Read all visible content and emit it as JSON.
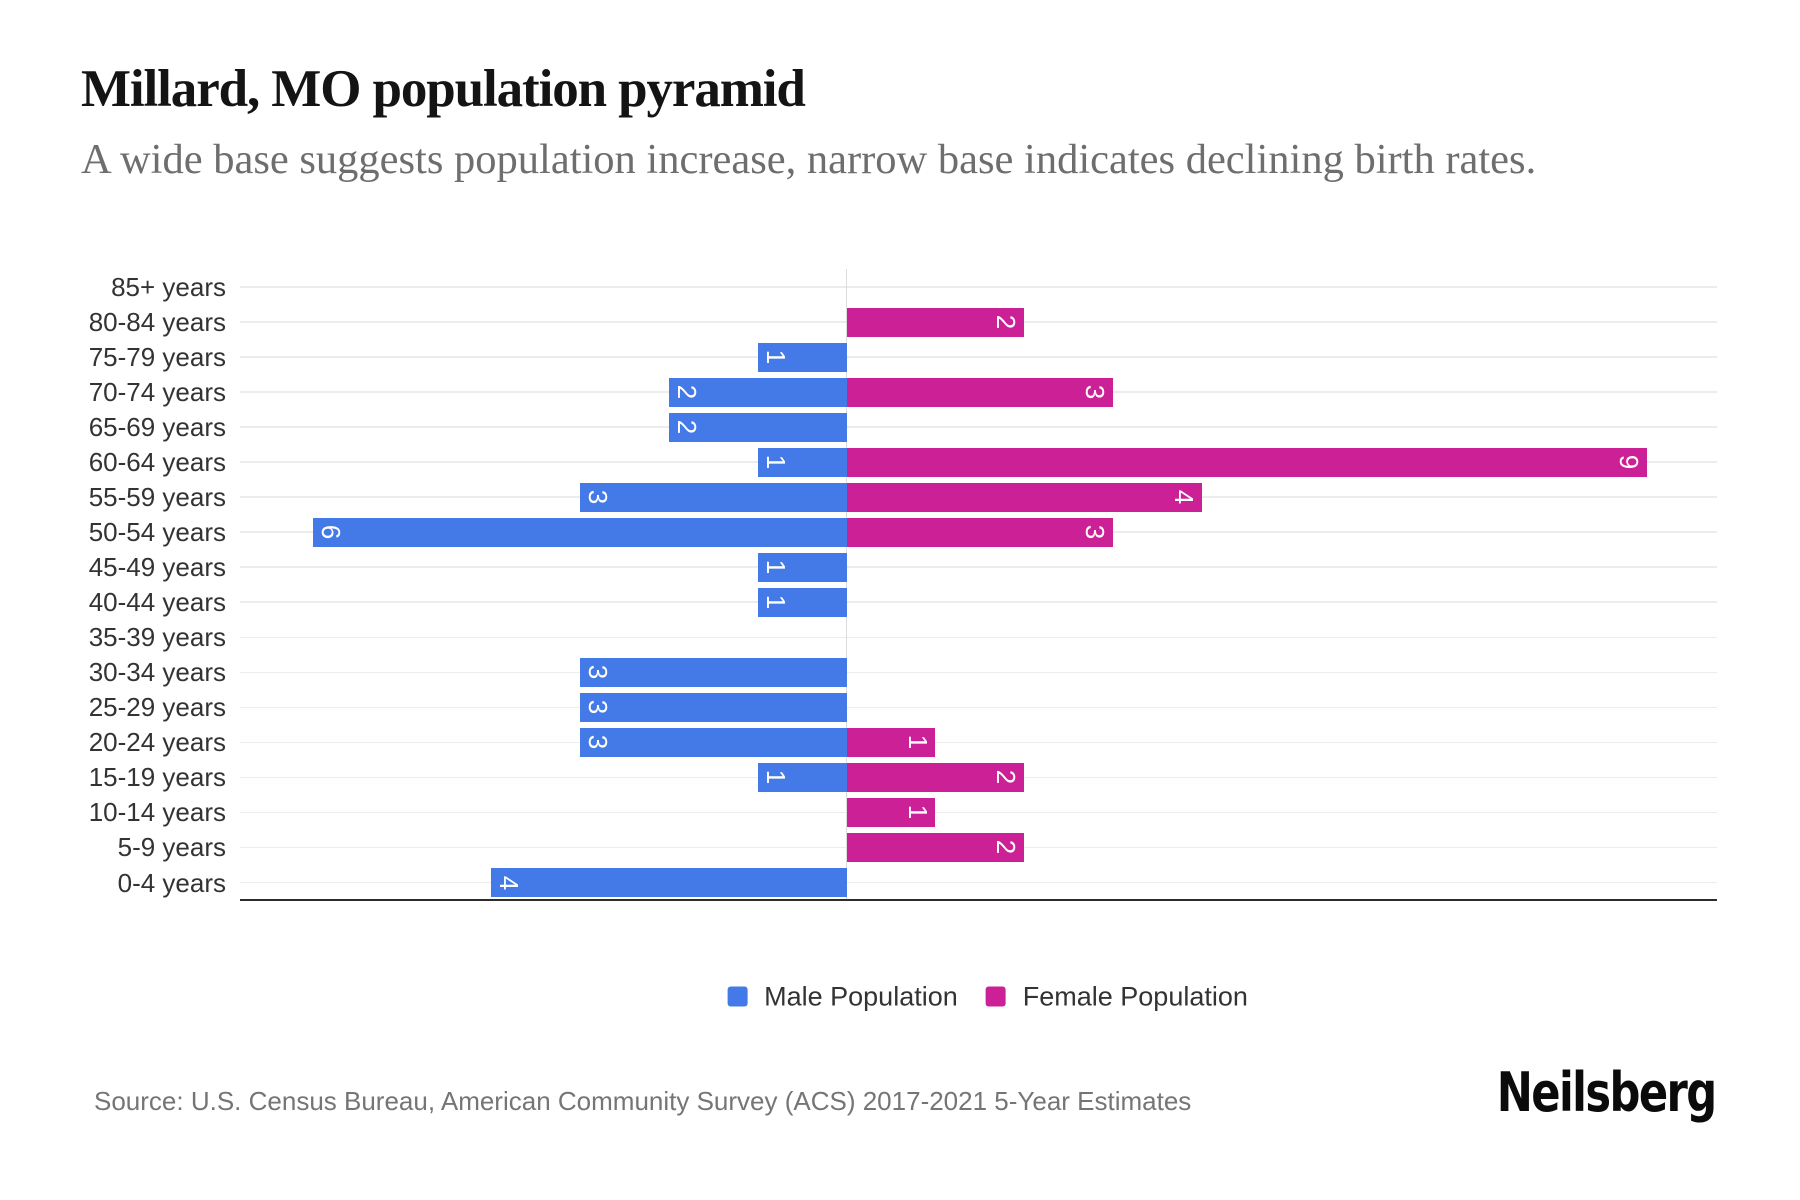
{
  "header": {
    "title": "Millard, MO population pyramid",
    "subtitle": "A wide base suggests population increase, narrow base indicates declining birth rates."
  },
  "chart_data": {
    "type": "bar",
    "variant": "population-pyramid",
    "orientation": "horizontal",
    "title": "Millard, MO population pyramid",
    "subtitle": "A wide base suggests population increase, narrow base indicates declining birth rates.",
    "categories": [
      "85+ years",
      "80-84 years",
      "75-79 years",
      "70-74 years",
      "65-69 years",
      "60-64 years",
      "55-59 years",
      "50-54 years",
      "45-49 years",
      "40-44 years",
      "35-39 years",
      "30-34 years",
      "25-29 years",
      "20-24 years",
      "15-19 years",
      "10-14 years",
      "5-9 years",
      "0-4 years"
    ],
    "series": [
      {
        "name": "Male Population",
        "direction": "left",
        "color": "#4479e8",
        "values": [
          0,
          0,
          1,
          2,
          2,
          1,
          3,
          6,
          1,
          1,
          0,
          3,
          3,
          3,
          1,
          0,
          0,
          4
        ]
      },
      {
        "name": "Female Population",
        "direction": "right",
        "color": "#cc2096",
        "values": [
          0,
          2,
          0,
          3,
          0,
          9,
          4,
          3,
          0,
          0,
          0,
          0,
          0,
          1,
          2,
          1,
          2,
          0
        ]
      }
    ],
    "value_axis": {
      "zero_at_center": true,
      "xlim": [
        -6.8,
        9.8
      ],
      "gridlines": "category",
      "data_labels": "inside-end, rotated 90deg, white"
    },
    "legend_position": "bottom-center"
  },
  "legend": {
    "items": [
      {
        "label": "Male Population",
        "color": "#4479e8"
      },
      {
        "label": "Female Population",
        "color": "#cc2096"
      }
    ]
  },
  "footer": {
    "source": "Source: U.S. Census Bureau, American Community Survey (ACS) 2017-2021 5-Year Estimates",
    "logo": "Neilsberg"
  }
}
